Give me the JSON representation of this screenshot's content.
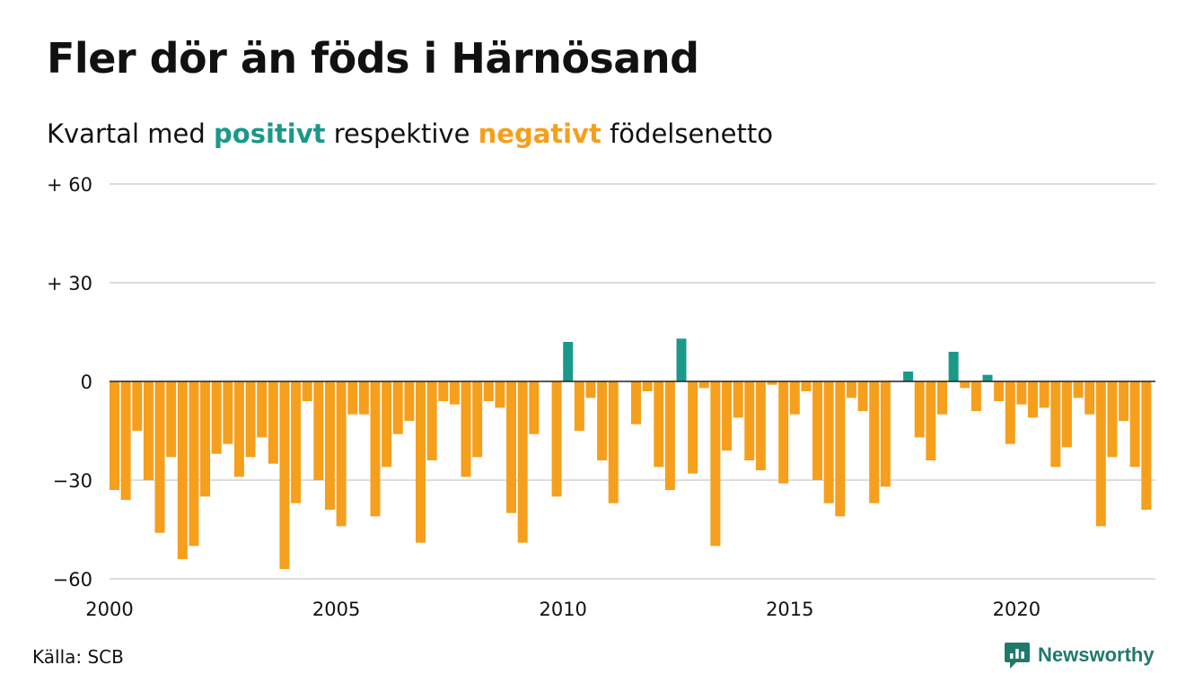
{
  "title": "Fler dör än föds i Härnösand",
  "subtitle": {
    "prefix": "Kvartal med ",
    "positive_word": "positivt",
    "middle": " respektive ",
    "negative_word": "negativt",
    "suffix": " födelsenetto"
  },
  "source": "Källa: SCB",
  "brand": "Newsworthy",
  "colors": {
    "positive": "#1a9988",
    "negative": "#f59f1d",
    "brand": "#1f7a6d",
    "grid": "#dddddd",
    "text": "#111111"
  },
  "chart_data": {
    "type": "bar",
    "x_start": "2000 Q1",
    "period": "quarter",
    "ylim": [
      -60,
      60
    ],
    "yticks": [
      {
        "value": 60,
        "label": "+ 60"
      },
      {
        "value": 30,
        "label": "+ 30"
      },
      {
        "value": 0,
        "label": "0"
      },
      {
        "value": -30,
        "label": "−30"
      },
      {
        "value": -60,
        "label": "−60"
      }
    ],
    "xticks": [
      "2000",
      "2005",
      "2010",
      "2015",
      "2020"
    ],
    "grid": true,
    "legend": "none",
    "values": [
      -33,
      -36,
      -15,
      -30,
      -46,
      -23,
      -54,
      -50,
      -35,
      -22,
      -19,
      -29,
      -23,
      -17,
      -25,
      -57,
      -37,
      -6,
      -30,
      -39,
      -44,
      -10,
      -10,
      -41,
      -26,
      -16,
      -12,
      -49,
      -24,
      -6,
      -7,
      -29,
      -23,
      -6,
      -8,
      -40,
      -49,
      -16,
      0,
      -35,
      12,
      -15,
      -5,
      -24,
      -37,
      0,
      -13,
      -3,
      -26,
      -33,
      13,
      -28,
      -2,
      -50,
      -21,
      -11,
      -24,
      -27,
      -1,
      -31,
      -10,
      -3,
      -30,
      -37,
      -41,
      -5,
      -9,
      -37,
      -32,
      0,
      3,
      -17,
      -24,
      -10,
      9,
      -2,
      -9,
      2,
      -6,
      -19,
      -7,
      -11,
      -8,
      -26,
      -20,
      -5,
      -10,
      -44,
      -23,
      -12,
      -26,
      -39
    ]
  }
}
